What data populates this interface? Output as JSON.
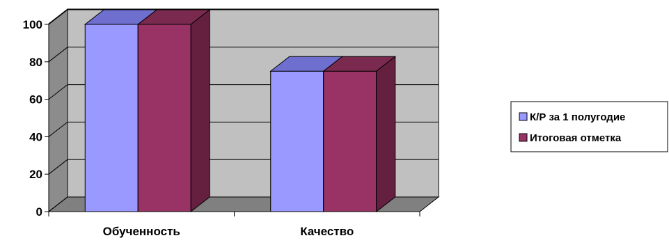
{
  "chart_data": {
    "type": "bar",
    "style": "3d-clustered-column",
    "categories": [
      "Обученность",
      "Качество"
    ],
    "series": [
      {
        "name": "К/Р за 1 полугодие",
        "values": [
          100,
          75
        ],
        "color": "#9999ff",
        "top_color": "#6f6fcf",
        "side_color": "#5b5bb0"
      },
      {
        "name": "Итоговая отметка",
        "values": [
          100,
          75
        ],
        "color": "#993366",
        "top_color": "#7a2a4f",
        "side_color": "#65203f"
      }
    ],
    "ylim": [
      0,
      100
    ],
    "yticks": [
      0,
      20,
      40,
      60,
      80,
      100
    ],
    "ytick_labels": [
      "0",
      "20",
      "40",
      "60",
      "80",
      "100"
    ],
    "grid": true,
    "wall_color": "#c0c0c0",
    "floor_color": "#808080",
    "legend": "right",
    "title": "",
    "xlabel": "",
    "ylabel": ""
  }
}
